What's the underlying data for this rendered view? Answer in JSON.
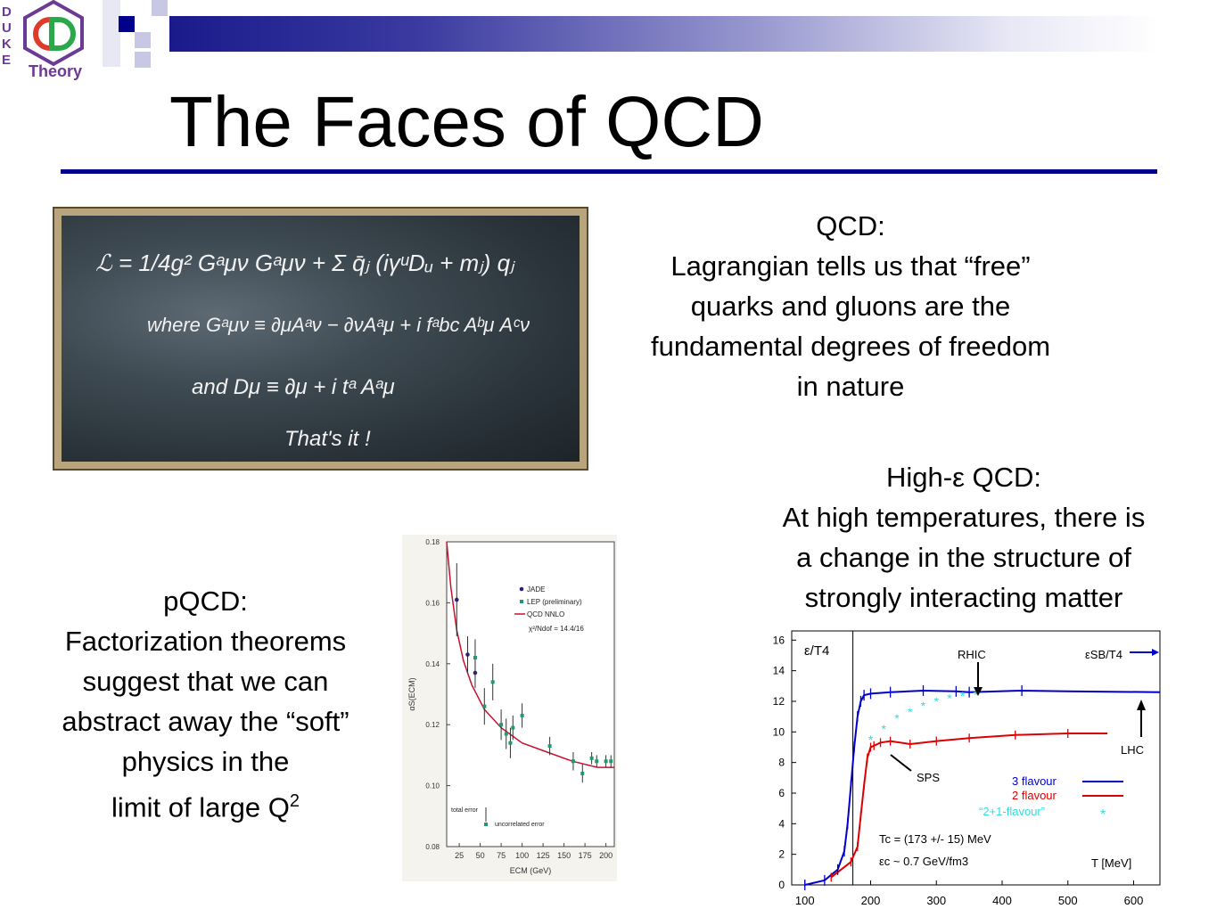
{
  "logo": {
    "text": "Theory",
    "side_letters": [
      "D",
      "U",
      "K",
      "E"
    ]
  },
  "slide": {
    "title": "The Faces of QCD"
  },
  "blackboard": {
    "lines": [
      "ℒ = 1/4g² Gᵃμν Gᵃμν + Σ q̄ⱼ (iγᵘDᵤ + mⱼ) qⱼ",
      "where Gᵃμν ≡ ∂μAᵃν − ∂νAᵃμ + i fᵃbc Aᵇμ Aᶜν",
      "and Dμ ≡ ∂μ + i tᵃ Aᵃμ",
      "That's it !"
    ]
  },
  "qcd": {
    "heading": "QCD:",
    "lines": [
      "Lagrangian tells us that “free”",
      "quarks and gluons are the",
      "fundamental degrees of freedom",
      "in nature"
    ]
  },
  "high_e": {
    "heading": "High-ε QCD:",
    "lines": [
      "At high temperatures, there is",
      "a change in the structure of",
      "strongly interacting matter"
    ]
  },
  "pqcd": {
    "heading": "pQCD:",
    "lines": [
      "Factorization theorems",
      "suggest that we can",
      "abstract away the “soft”",
      "physics in the"
    ],
    "last_line": "limit of large Q",
    "last_sup": "2"
  },
  "chart_data": [
    {
      "type": "scatter",
      "ylabel": "αS(ECM)",
      "xlabel": "ECM (GeV)",
      "x_ticks": [
        "25",
        "50",
        "75",
        "100",
        "125",
        "150",
        "175",
        "200"
      ],
      "y_ticks": [
        "0.08",
        "0.10",
        "0.12",
        "0.14",
        "0.16",
        "0.18"
      ],
      "xlim": [
        10,
        210
      ],
      "ylim": [
        0.08,
        0.18
      ],
      "legend": [
        "JADE",
        "LEP (preliminary)",
        "QCD NNLO"
      ],
      "fit_label": "χ²/Ndof = 14.4/16",
      "annotations": [
        "total error",
        "uncorrelated error"
      ],
      "colors": {
        "jade": "#2b1f7a",
        "lep": "#1f9a6a",
        "fit": "#c8102e"
      },
      "series": [
        {
          "name": "JADE",
          "x": [
            22,
            35,
            44
          ],
          "y": [
            0.161,
            0.143,
            0.137
          ],
          "err": [
            0.012,
            0.006,
            0.005
          ]
        },
        {
          "name": "LEP (preliminary)",
          "x": [
            44,
            55,
            65,
            75,
            81,
            86,
            89,
            100,
            133,
            161,
            172,
            183,
            189,
            200,
            206
          ],
          "y": [
            0.142,
            0.126,
            0.134,
            0.12,
            0.117,
            0.114,
            0.119,
            0.123,
            0.113,
            0.108,
            0.104,
            0.109,
            0.108,
            0.108,
            0.108
          ],
          "err": [
            0.006,
            0.006,
            0.006,
            0.005,
            0.005,
            0.005,
            0.004,
            0.004,
            0.003,
            0.003,
            0.003,
            0.002,
            0.002,
            0.002,
            0.002
          ]
        },
        {
          "name": "QCD NNLO",
          "x": [
            10,
            15,
            22,
            30,
            40,
            55,
            75,
            100,
            130,
            160,
            190,
            210
          ],
          "y": [
            0.18,
            0.165,
            0.151,
            0.141,
            0.133,
            0.125,
            0.119,
            0.114,
            0.111,
            0.108,
            0.106,
            0.106
          ]
        }
      ]
    },
    {
      "type": "line",
      "ylabel": "ε/T4",
      "xlabel": "T [MeV]",
      "x_ticks": [
        "100",
        "200",
        "300",
        "400",
        "500",
        "600"
      ],
      "y_ticks": [
        "0",
        "2",
        "4",
        "6",
        "8",
        "10",
        "12",
        "14",
        "16"
      ],
      "xlim": [
        80,
        640
      ],
      "ylim": [
        0,
        16.6
      ],
      "legend": [
        "3 flavour",
        "2 flavour",
        "“2+1-flavour”"
      ],
      "annotations": [
        "RHIC",
        "LHC",
        "SPS",
        "εSB/T4"
      ],
      "tc_text": "Tc = (173 +/- 15) MeV",
      "ec_text": "εc ~ 0.7 GeV/fm3",
      "colors": {
        "three": "#0000cc",
        "two": "#dd0000",
        "two_one": "#33dddd"
      },
      "series": [
        {
          "name": "3 flavour",
          "x": [
            100,
            130,
            150,
            160,
            165,
            170,
            175,
            180,
            185,
            190,
            200,
            230,
            280,
            330,
            350,
            430,
            500,
            640
          ],
          "y": [
            0,
            0.3,
            1.0,
            2.2,
            4.0,
            6.5,
            9.0,
            11.0,
            12.0,
            12.4,
            12.5,
            12.6,
            12.7,
            12.65,
            12.6,
            12.7,
            12.65,
            12.6
          ]
        },
        {
          "name": "2 flavour",
          "x": [
            140,
            170,
            180,
            185,
            190,
            195,
            200,
            205,
            215,
            230,
            260,
            300,
            350,
            420,
            500,
            560
          ],
          "y": [
            0.5,
            1.5,
            2.5,
            4.5,
            6.5,
            8.3,
            9.0,
            9.1,
            9.3,
            9.4,
            9.2,
            9.4,
            9.6,
            9.8,
            9.9,
            9.9
          ]
        },
        {
          "name": "“2+1-flavour”",
          "x": [
            200,
            220,
            240,
            260,
            280,
            300,
            320,
            340,
            360
          ],
          "y": [
            9.5,
            10.2,
            10.9,
            11.3,
            11.7,
            12.0,
            12.2,
            12.35,
            12.45
          ]
        }
      ]
    }
  ]
}
